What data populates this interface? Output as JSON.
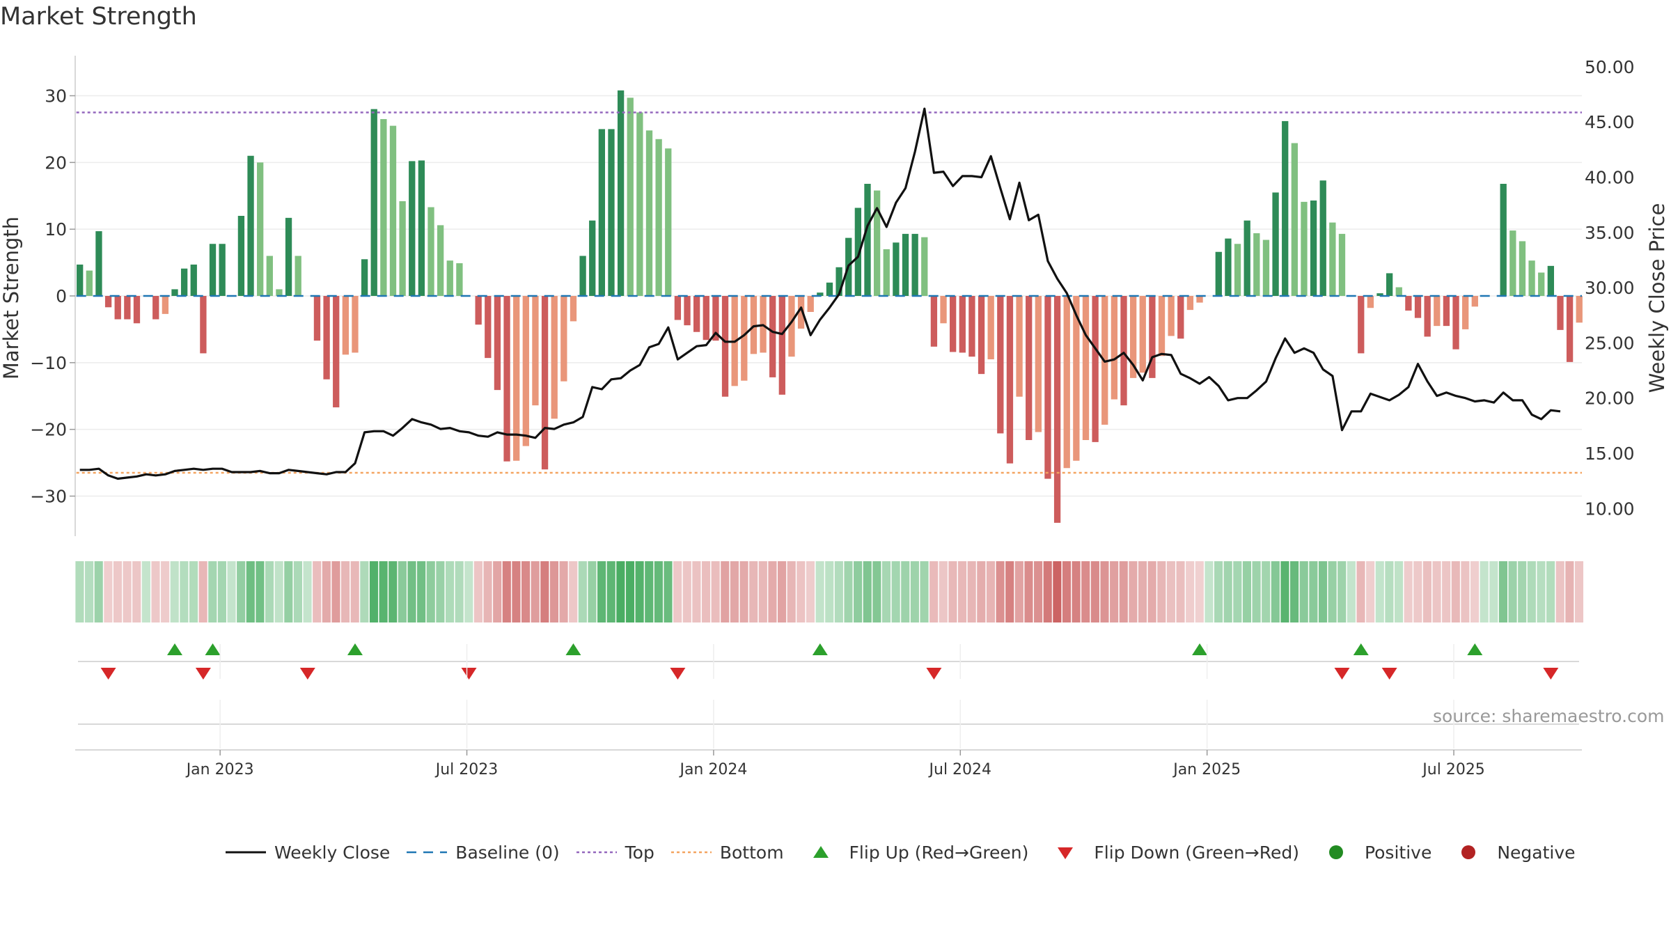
{
  "title": "Market Strength",
  "source": "source: sharemaestro.com",
  "colors": {
    "pos_strong": "#2e8b57",
    "pos_weak": "#80c080",
    "neg_strong": "#cd5c5c",
    "neg_weak": "#e9967a",
    "line": "#111111",
    "baseline": "#1f77b4",
    "top": "#9467bd",
    "bottom": "#f4a460",
    "flip_up": "#2ca02c",
    "flip_down": "#d62728",
    "positive": "#228b22",
    "negative": "#b22222"
  },
  "chart_data": {
    "type": "bar",
    "title": "Market Strength",
    "ylabel_left": "Market Strength",
    "ylabel_right": "Weekly Close Price",
    "ylim_left": [
      -36,
      36
    ],
    "ylim_right": [
      7.5,
      51.0
    ],
    "yticks_left": [
      "−30",
      "−20",
      "−10",
      "0",
      "10",
      "20",
      "30"
    ],
    "yticks_right": [
      "10.00",
      "15.00",
      "20.00",
      "25.00",
      "30.00",
      "35.00",
      "40.00",
      "45.00",
      "50.00"
    ],
    "x_ticks": [
      "Jan 2023",
      "Jul 2023",
      "Jan 2024",
      "Jul 2024",
      "Jan 2025",
      "Jul 2025"
    ],
    "x_tick_week_index": [
      15,
      41,
      67,
      93,
      119,
      145
    ],
    "top_level": 27.5,
    "bottom_level": -26.5,
    "baseline": 0,
    "strength": [
      4.7,
      3.8,
      9.7,
      -1.7,
      -3.5,
      -3.5,
      -4.1,
      0,
      -3.5,
      -2.7,
      1.0,
      4.1,
      4.7,
      -8.6,
      7.8,
      7.8,
      0,
      12.0,
      21.0,
      20.0,
      6.0,
      1.0,
      11.7,
      6.0,
      0,
      -6.7,
      -12.5,
      -16.7,
      -8.8,
      -8.5,
      5.5,
      28.0,
      26.5,
      25.5,
      14.2,
      20.2,
      20.3,
      13.3,
      10.6,
      5.3,
      4.9,
      0,
      -4.3,
      -9.3,
      -14.1,
      -24.8,
      -24.7,
      -22.5,
      -16.4,
      -26.0,
      -18.4,
      -12.8,
      -3.8,
      6.0,
      11.3,
      25.0,
      25.0,
      30.8,
      29.7,
      27.5,
      24.8,
      23.5,
      22.1,
      -3.6,
      -4.4,
      -5.4,
      -6.6,
      -6.7,
      -15.1,
      -13.5,
      -12.7,
      -8.7,
      -8.5,
      -12.2,
      -14.8,
      -9.1,
      -4.9,
      -2.4,
      0.5,
      2.0,
      4.3,
      8.7,
      13.2,
      16.8,
      15.8,
      7.0,
      8.0,
      9.3,
      9.3,
      8.8,
      -7.6,
      -4.1,
      -8.4,
      -8.5,
      -9.1,
      -11.7,
      -9.5,
      -20.6,
      -25.1,
      -15.1,
      -21.6,
      -20.4,
      -27.4,
      -34.0,
      -25.8,
      -24.7,
      -21.6,
      -21.9,
      -19.3,
      -15.5,
      -16.4,
      -12.3,
      -11.5,
      -12.3,
      -9.0,
      -6.0,
      -6.4,
      -2.1,
      -1.0,
      0,
      6.6,
      8.6,
      7.8,
      11.3,
      9.4,
      8.4,
      15.5,
      26.2,
      22.9,
      14.1,
      14.3,
      17.3,
      11.0,
      9.3,
      0,
      -8.6,
      -1.8,
      0.4,
      3.4,
      1.3,
      -2.2,
      -3.3,
      -6.1,
      -4.5,
      -4.5,
      -8.0,
      -5.0,
      -1.6,
      0,
      0,
      16.8,
      9.8,
      8.2,
      5.3,
      3.5,
      4.5,
      -5.1,
      -9.9,
      -4.0
    ],
    "weekly_close": [
      13.5,
      13.5,
      13.6,
      13.0,
      12.7,
      12.8,
      12.9,
      13.1,
      13.0,
      13.1,
      13.4,
      13.5,
      13.6,
      13.5,
      13.6,
      13.6,
      13.3,
      13.3,
      13.3,
      13.4,
      13.2,
      13.2,
      13.5,
      13.4,
      13.3,
      13.2,
      13.1,
      13.3,
      13.3,
      14.1,
      16.9,
      17.0,
      17.0,
      16.6,
      17.3,
      18.1,
      17.8,
      17.6,
      17.2,
      17.3,
      17.0,
      16.9,
      16.6,
      16.5,
      16.9,
      16.7,
      16.7,
      16.6,
      16.4,
      17.3,
      17.2,
      17.6,
      17.8,
      18.3,
      21.0,
      20.8,
      21.7,
      21.8,
      22.5,
      23.0,
      24.6,
      24.9,
      26.4,
      23.5,
      24.1,
      24.7,
      24.8,
      25.9,
      25.1,
      25.1,
      25.7,
      26.5,
      26.6,
      26.0,
      25.8,
      26.9,
      28.2,
      25.7,
      27.1,
      28.2,
      29.4,
      32.0,
      32.8,
      35.6,
      37.2,
      35.5,
      37.7,
      39.0,
      42.3,
      46.2,
      40.4,
      40.5,
      39.2,
      40.1,
      40.1,
      40.0,
      41.9,
      39.0,
      36.2,
      39.5,
      36.1,
      36.6,
      32.4,
      30.8,
      29.5,
      27.5,
      25.7,
      24.5,
      23.3,
      23.5,
      24.1,
      23.0,
      21.6,
      23.7,
      24.0,
      23.9,
      22.2,
      21.8,
      21.3,
      21.9,
      21.1,
      19.8,
      20.0,
      20.0,
      20.7,
      21.5,
      23.6,
      25.4,
      24.1,
      24.5,
      24.1,
      22.6,
      22.0,
      17.1,
      18.8,
      18.8,
      20.4,
      20.1,
      19.8,
      20.3,
      21.0,
      23.1,
      21.5,
      20.2,
      20.5,
      20.2,
      20.0,
      19.7,
      19.8,
      19.6,
      20.5,
      19.8,
      19.8,
      18.5,
      18.1,
      18.9,
      18.8
    ],
    "flip_up_weeks": [
      10,
      14,
      29,
      52,
      78,
      118,
      135,
      147
    ],
    "flip_down_weeks": [
      3,
      13,
      24,
      41,
      63,
      90,
      133,
      138,
      155
    ],
    "series": [
      {
        "name": "Weekly Close"
      },
      {
        "name": "Baseline (0)"
      },
      {
        "name": "Top"
      },
      {
        "name": "Bottom"
      },
      {
        "name": "Flip Up (Red→Green)"
      },
      {
        "name": "Flip Down (Green→Red)"
      },
      {
        "name": "Positive"
      },
      {
        "name": "Negative"
      }
    ],
    "legend_position": "bottom-center",
    "grid": true
  }
}
